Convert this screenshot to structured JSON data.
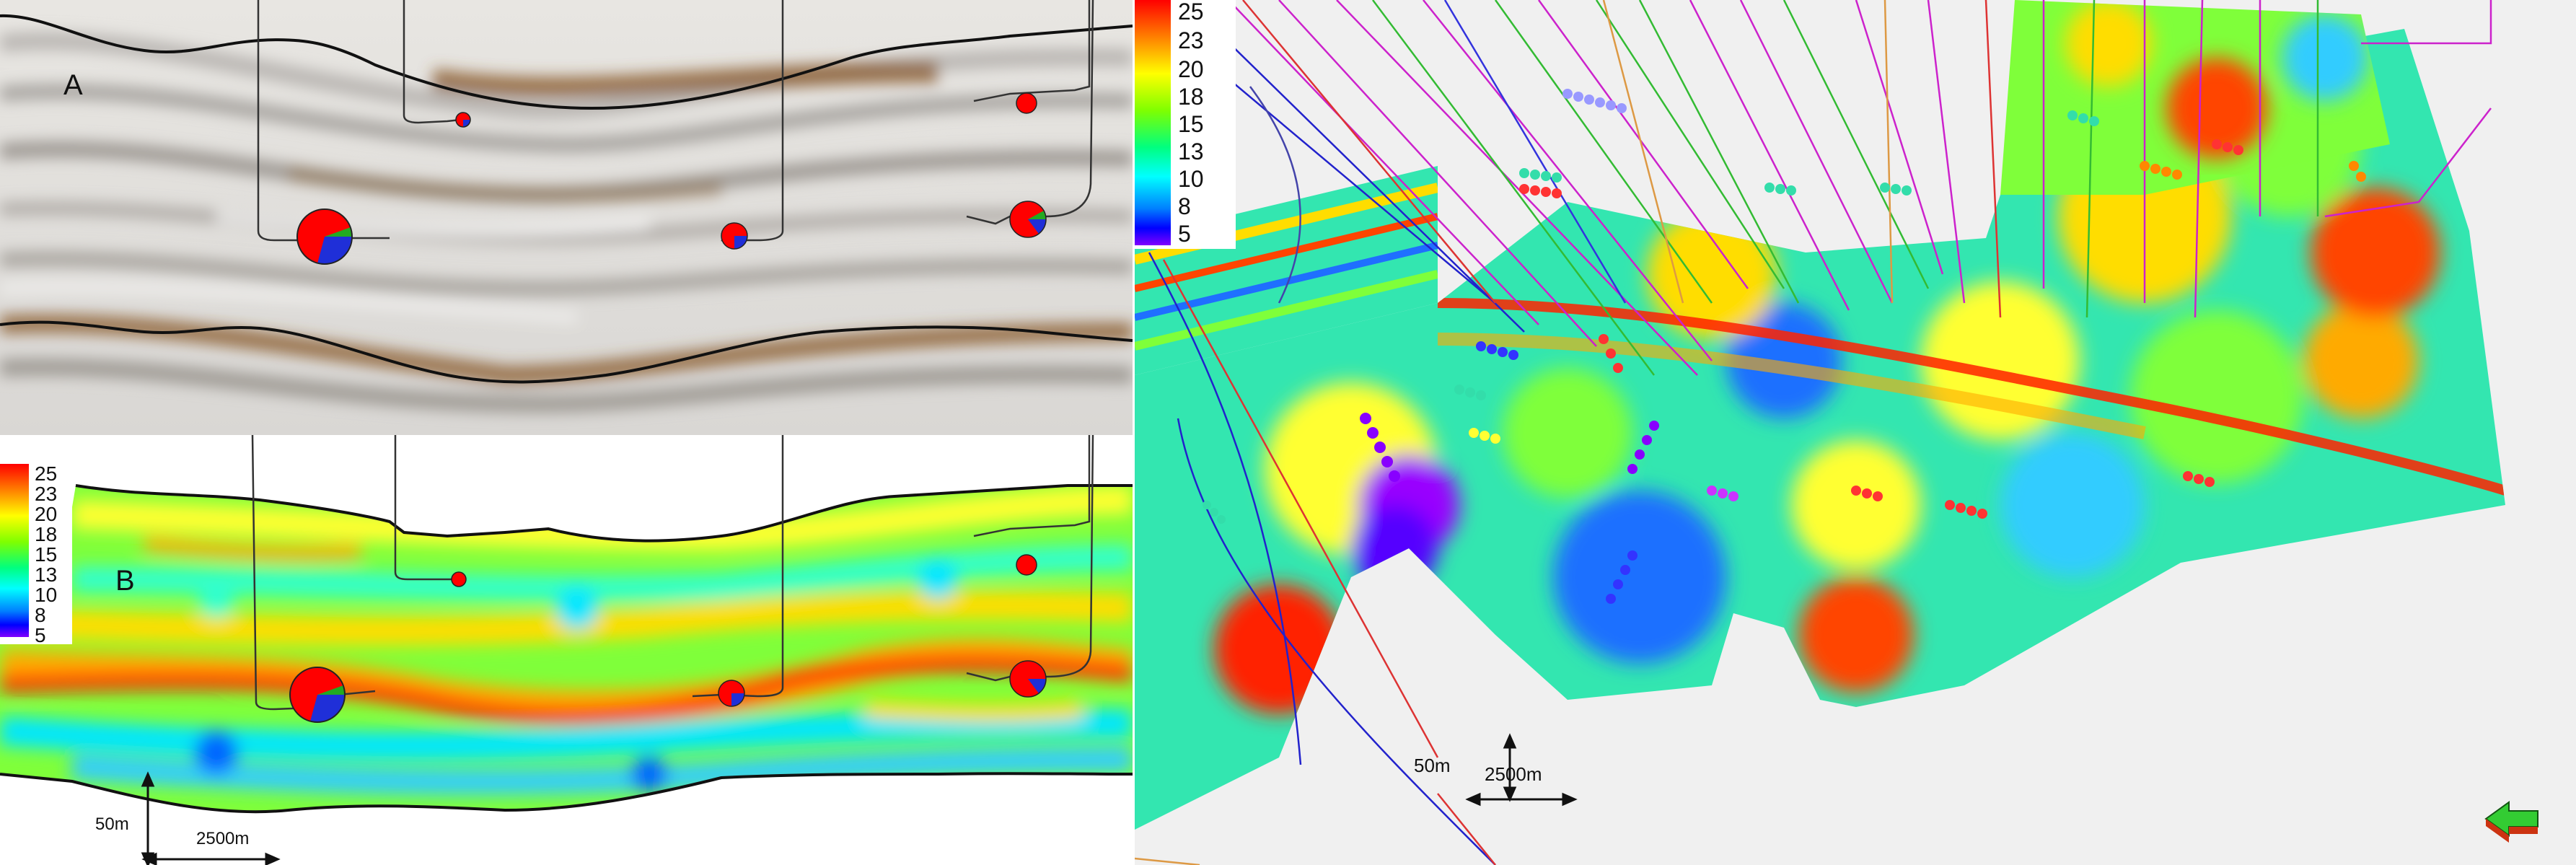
{
  "panel_a": {
    "letter": "A"
  },
  "panel_b": {
    "letter": "B"
  },
  "scale_bar_b": {
    "vertical": "50m",
    "horizontal": "2500m"
  },
  "scale_bar_3d": {
    "vertical": "50m",
    "horizontal": "2500m"
  },
  "legend_labels": [
    "25",
    "23",
    "20",
    "18",
    "15",
    "13",
    "10",
    "8",
    "5"
  ],
  "colors": {
    "high": "#ff0000",
    "mid": "#ffff00",
    "low": "#0000ff",
    "seismic_brown": "#8a5a2b",
    "pie_red": "#ff0000",
    "pie_blue": "#1f2fd8",
    "pie_green": "#22aa22"
  }
}
